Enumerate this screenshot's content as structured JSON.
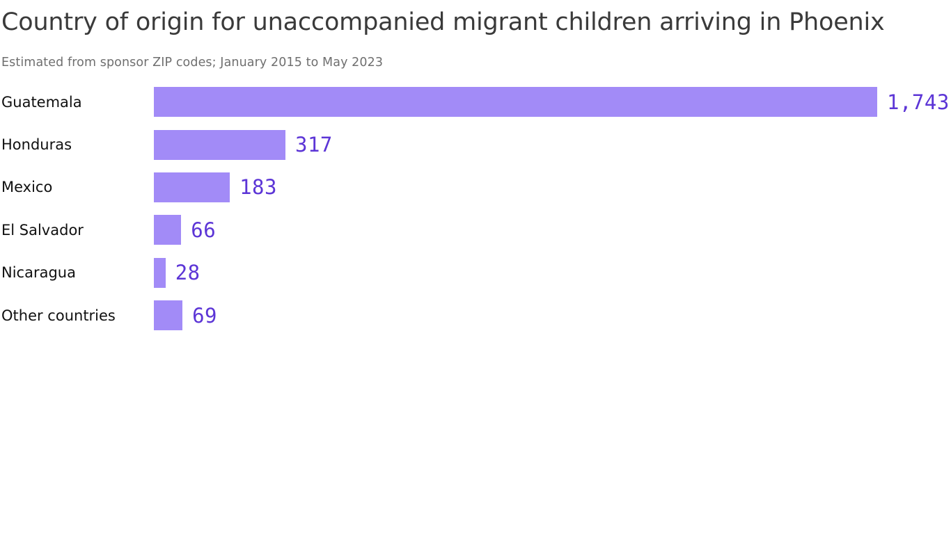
{
  "header": {
    "title": "Country of origin for unaccompanied migrant children arriving in Phoenix",
    "subtitle": "Estimated from sponsor ZIP codes; January 2015 to May 2023"
  },
  "colors": {
    "bar_fill": "#a28bf7",
    "value_text": "#5c35d6",
    "title_text": "#3a3a3a",
    "subtitle_text": "#6f6f6f",
    "label_text": "#101010",
    "background": "#ffffff"
  },
  "chart_data": {
    "type": "bar",
    "orientation": "horizontal",
    "title": "Country of origin for unaccompanied migrant children arriving in Phoenix",
    "subtitle": "Estimated from sponsor ZIP codes; January 2015 to May 2023",
    "categories": [
      "Guatemala",
      "Honduras",
      "Mexico",
      "El Salvador",
      "Nicaragua",
      "Other countries"
    ],
    "values": [
      1743,
      317,
      183,
      66,
      28,
      69
    ],
    "value_labels": [
      "1,743",
      "317",
      "183",
      "66",
      "28",
      "69"
    ],
    "xlim": [
      0,
      1743
    ],
    "grid": false,
    "legend": false,
    "value_label_position": "right-of-bar"
  }
}
